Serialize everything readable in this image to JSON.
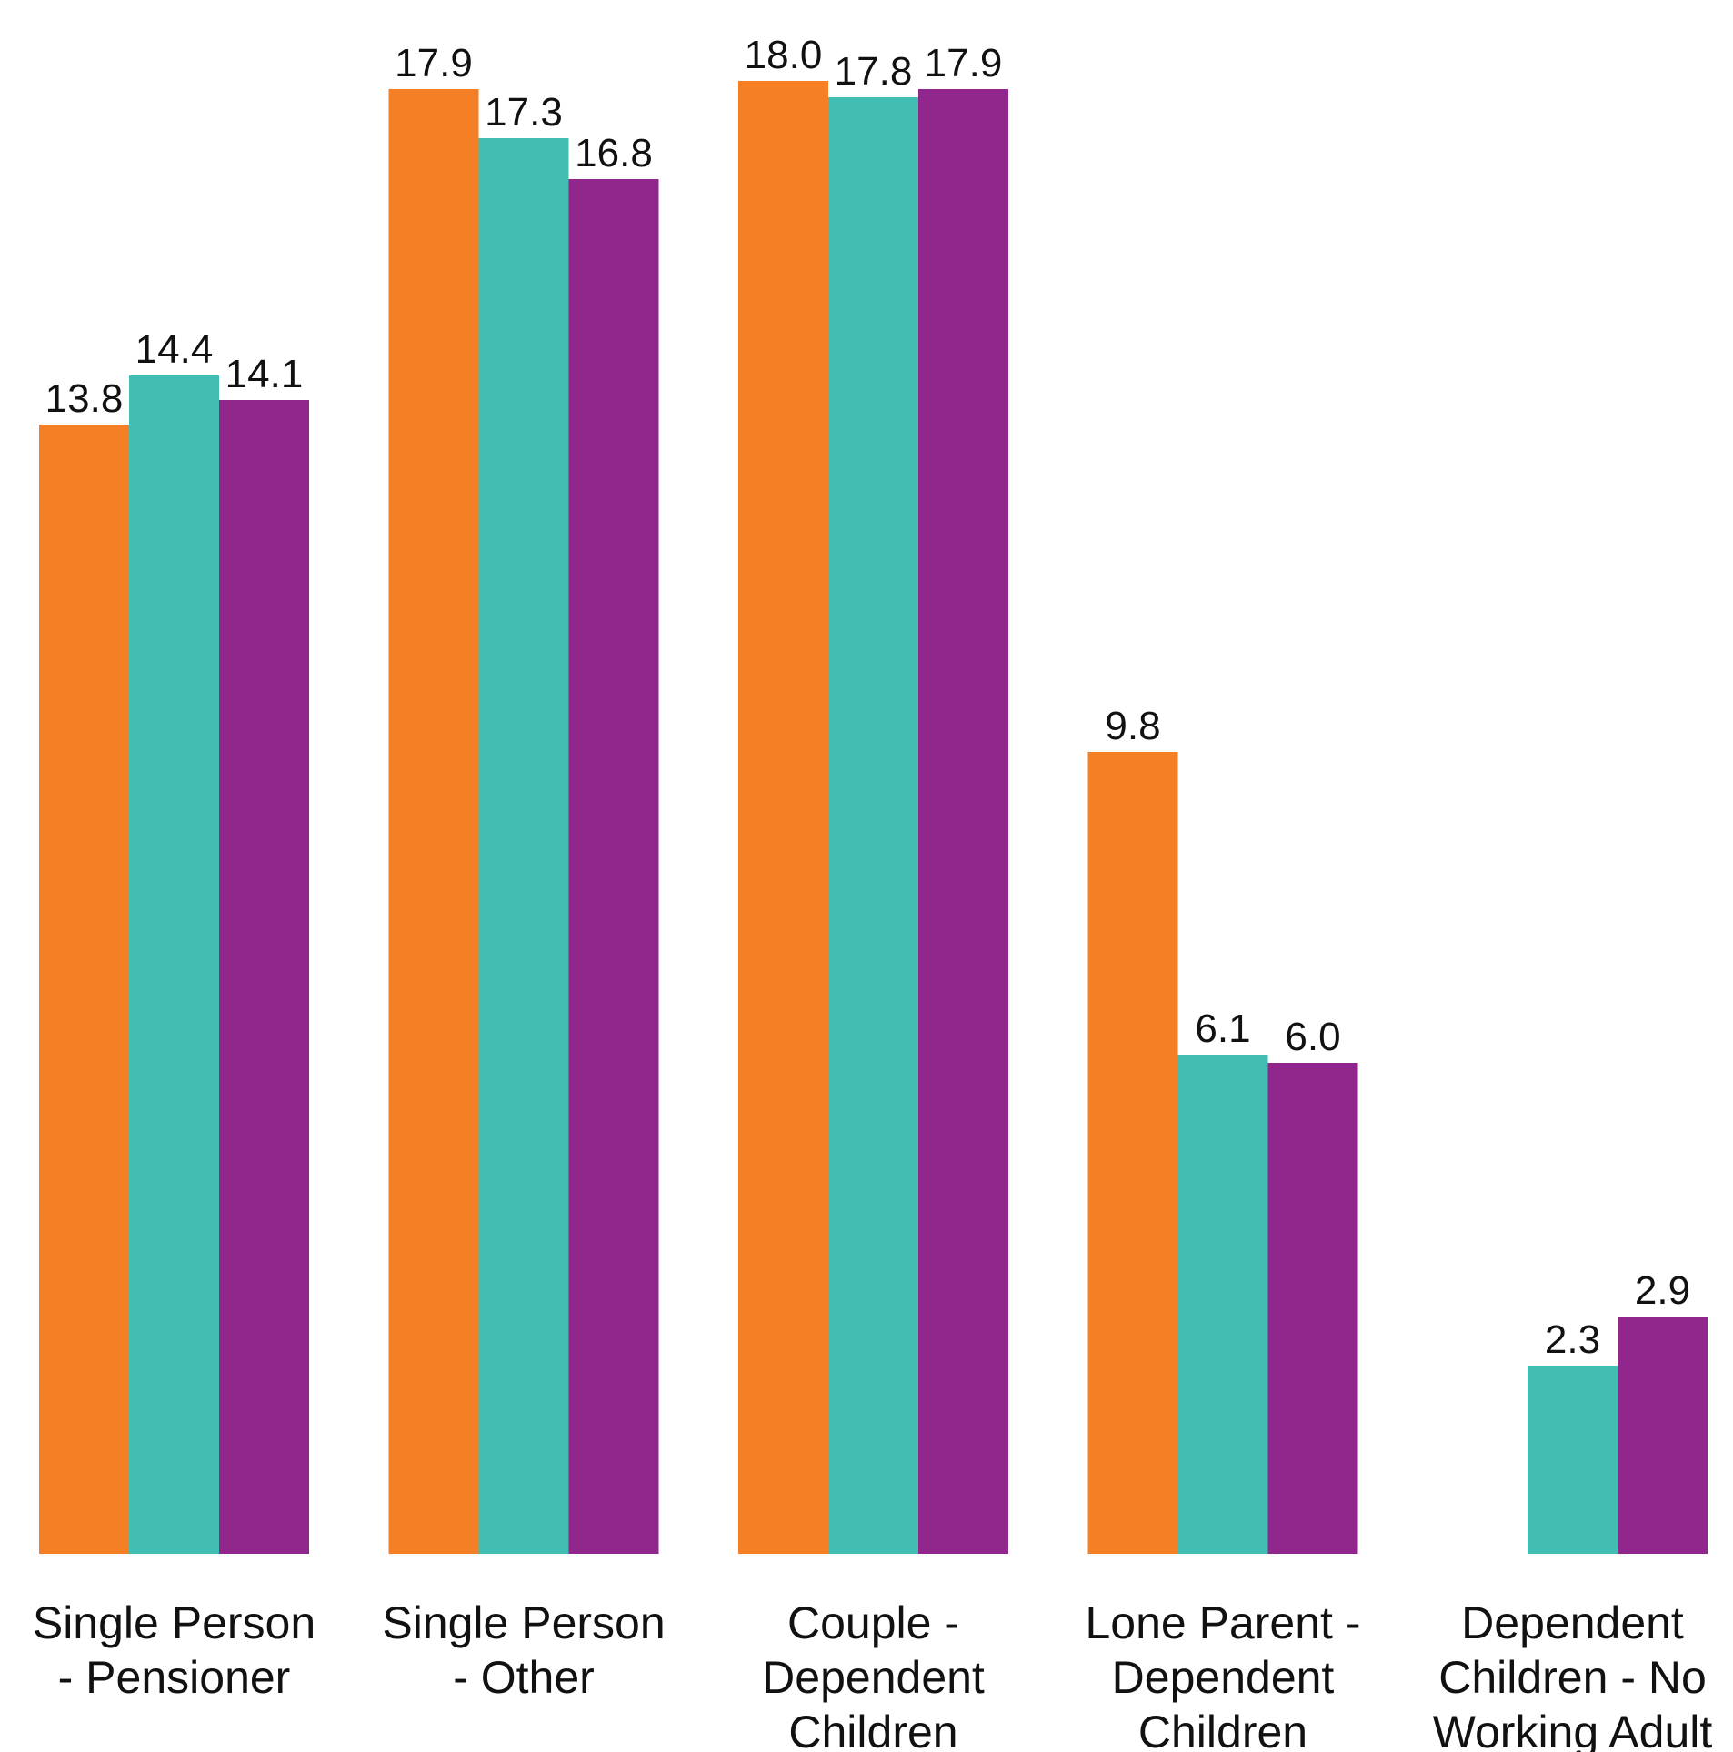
{
  "chart_data": {
    "type": "bar",
    "title": "",
    "xlabel": "",
    "ylabel": "",
    "ylim": [
      0,
      18.0
    ],
    "grid": false,
    "legend": "none",
    "categories": [
      [
        "Single Person",
        "- Pensioner"
      ],
      [
        "Single Person",
        "- Other"
      ],
      [
        "Couple -",
        "Dependent",
        "Children"
      ],
      [
        "Lone Parent -",
        "Dependent",
        "Children"
      ],
      [
        "Dependent",
        "Children - No",
        "Working Adult"
      ]
    ],
    "series": [
      {
        "color": "#f47f24",
        "values": [
          13.8,
          17.9,
          18.0,
          9.8,
          null
        ],
        "labels": [
          "13.8",
          "17.9",
          "18.0",
          "9.8",
          ""
        ]
      },
      {
        "color": "#41bdb1",
        "values": [
          14.4,
          17.3,
          17.8,
          6.1,
          2.3
        ],
        "labels": [
          "14.4",
          "17.3",
          "17.8",
          "6.1",
          "2.3"
        ]
      },
      {
        "color": "#91268c",
        "values": [
          14.1,
          16.8,
          17.9,
          6.0,
          2.9
        ],
        "labels": [
          "14.1",
          "16.8",
          "17.9",
          "6.0",
          "2.9"
        ]
      }
    ]
  }
}
